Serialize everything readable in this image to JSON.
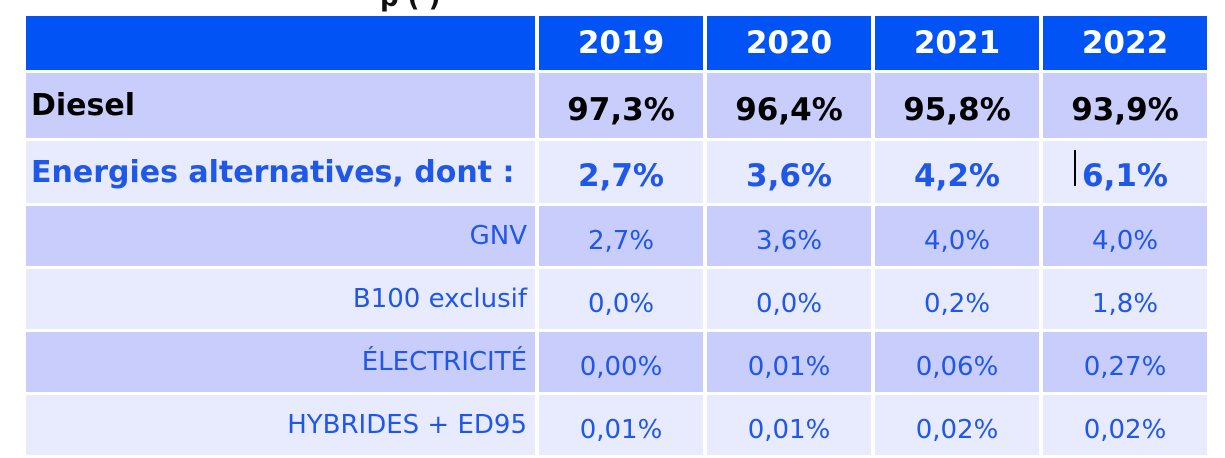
{
  "chart_data": {
    "type": "table",
    "title": "",
    "columns": [
      "2019",
      "2020",
      "2021",
      "2022"
    ],
    "rows": [
      {
        "label": "Diesel",
        "values": [
          "97,3%",
          "96,4%",
          "95,8%",
          "93,9%"
        ]
      },
      {
        "label": "Energies alternatives, dont :",
        "values": [
          "2,7%",
          "3,6%",
          "4,2%",
          "6,1%"
        ]
      },
      {
        "label": "GNV",
        "values": [
          "2,7%",
          "3,6%",
          "4,0%",
          "4,0%"
        ]
      },
      {
        "label": "B100 exclusif",
        "values": [
          "0,0%",
          "0,0%",
          "0,2%",
          "1,8%"
        ]
      },
      {
        "label": "ÉLECTRICITÉ",
        "values": [
          "0,00%",
          "0,01%",
          "0,06%",
          "0,27%"
        ]
      },
      {
        "label": "HYBRIDES + ED95",
        "values": [
          "0,01%",
          "0,01%",
          "0,02%",
          "0,02%"
        ]
      }
    ]
  }
}
